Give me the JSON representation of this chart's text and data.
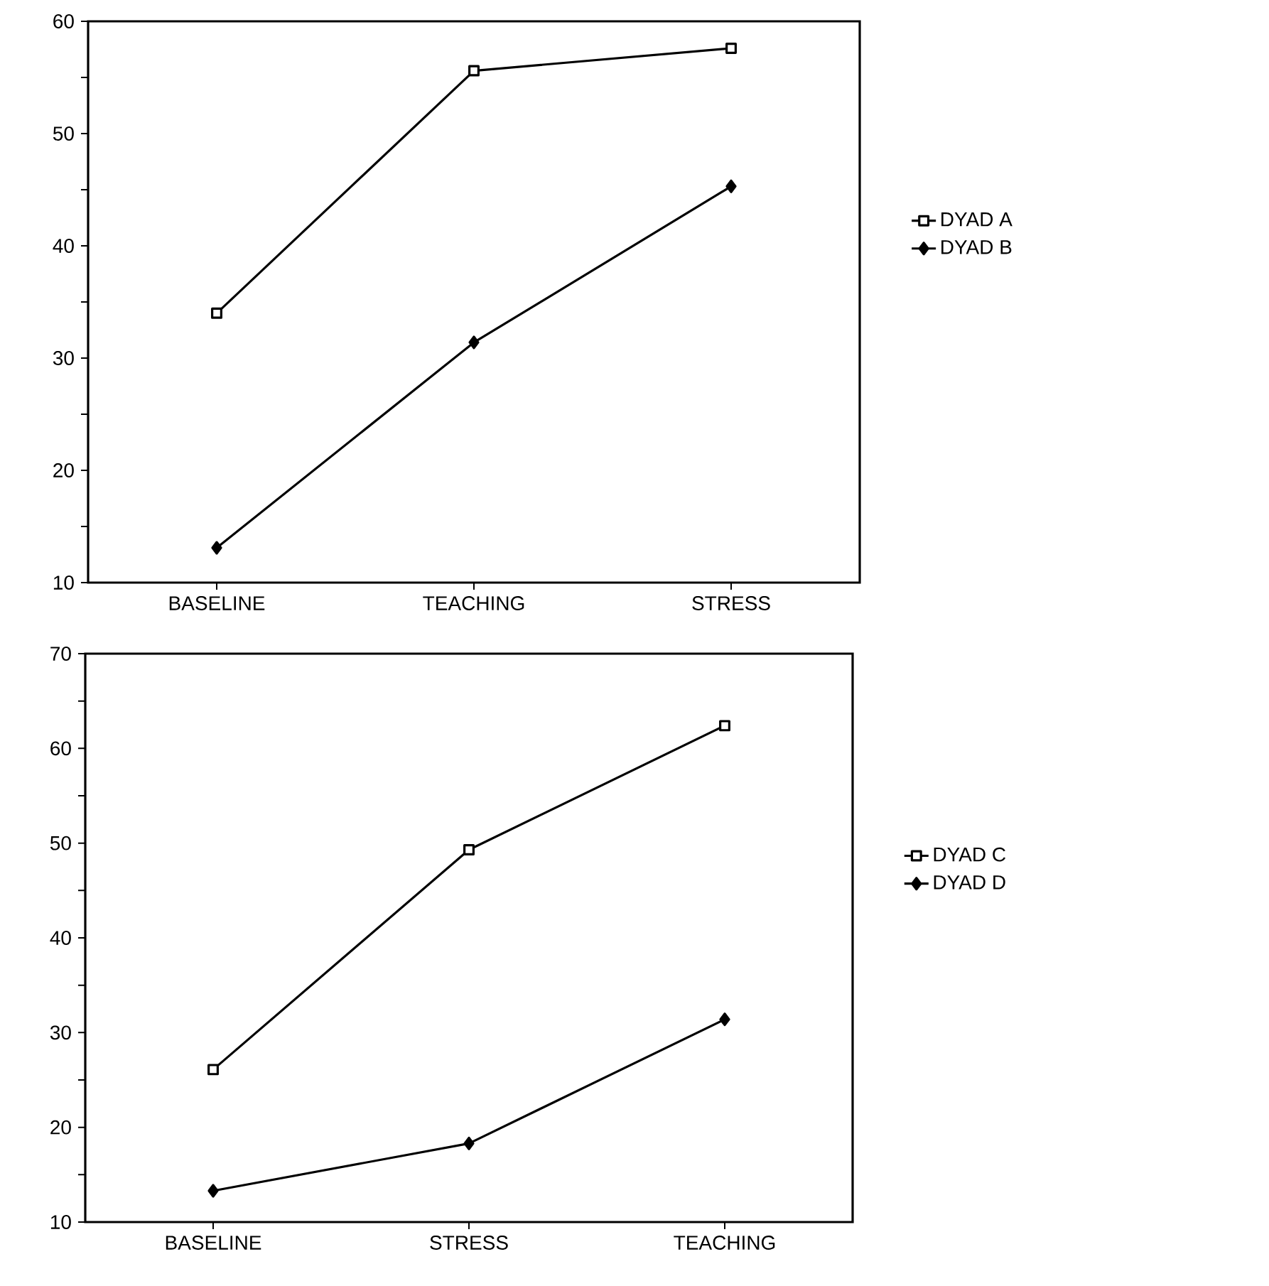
{
  "chart_data": [
    {
      "type": "line",
      "categories": [
        "BASELINE",
        "TEACHING",
        "STRESS"
      ],
      "ylim": [
        10,
        60
      ],
      "yticks": [
        10,
        {
          "value": 15,
          "label": null
        },
        20,
        {
          "value": 25,
          "label": null
        },
        30,
        {
          "value": 35,
          "label": null
        },
        40,
        {
          "value": 45,
          "label": null
        },
        50,
        {
          "value": 55,
          "label": null
        },
        60
      ],
      "legend": "right",
      "series": [
        {
          "name": "DYAD A",
          "color": "#000000",
          "marker": "square",
          "values": [
            34,
            55.6,
            57.6
          ]
        },
        {
          "name": "DYAD B",
          "color": "#000000",
          "marker": "diamond",
          "values": [
            13.1,
            31.4,
            45.3
          ]
        }
      ]
    },
    {
      "type": "line",
      "categories": [
        "BASELINE",
        "STRESS",
        "TEACHING"
      ],
      "ylim": [
        10,
        70
      ],
      "yticks": [
        10,
        {
          "value": 15,
          "label": null
        },
        20,
        {
          "value": 25,
          "label": null
        },
        30,
        {
          "value": 35,
          "label": null
        },
        40,
        {
          "value": 45,
          "label": null
        },
        50,
        {
          "value": 55,
          "label": null
        },
        60,
        {
          "value": 65,
          "label": null
        },
        70
      ],
      "legend": "right",
      "series": [
        {
          "name": "DYAD C",
          "color": "#000000",
          "marker": "square",
          "values": [
            26.1,
            49.3,
            62.4
          ]
        },
        {
          "name": "DYAD D",
          "color": "#000000",
          "marker": "diamond",
          "values": [
            13.3,
            18.3,
            31.4
          ]
        }
      ]
    }
  ]
}
